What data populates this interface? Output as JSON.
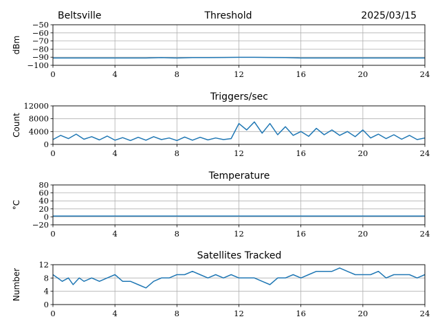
{
  "header": {
    "location": "Beltsville",
    "date": "2025/03/15"
  },
  "series_color": "#1f77b4",
  "chart_data": [
    {
      "type": "line",
      "title": "Threshold",
      "ylabel": "dBm",
      "xlim": [
        0,
        24
      ],
      "ylim": [
        -100,
        -50
      ],
      "xticks": [
        0,
        4,
        8,
        12,
        16,
        20,
        24
      ],
      "yticks": [
        -100,
        -90,
        -80,
        -70,
        -60,
        -50
      ],
      "grid": true,
      "x": [
        0,
        1,
        2,
        3,
        4,
        5,
        6,
        7,
        8,
        9,
        10,
        11,
        12,
        13,
        14,
        15,
        16,
        17,
        18,
        19,
        20,
        21,
        22,
        23,
        24
      ],
      "y": [
        -91,
        -91,
        -91,
        -91,
        -91,
        -91,
        -91,
        -90.5,
        -91,
        -90.5,
        -90.5,
        -90.3,
        -90.2,
        -90.2,
        -90.3,
        -90.5,
        -91,
        -91,
        -91,
        -91,
        -91,
        -91,
        -91,
        -91,
        -91
      ]
    },
    {
      "type": "line",
      "title": "Triggers/sec",
      "ylabel": "Count",
      "xlim": [
        0,
        24
      ],
      "ylim": [
        0,
        12000
      ],
      "xticks": [
        0,
        4,
        8,
        12,
        16,
        20,
        24
      ],
      "yticks": [
        0,
        4000,
        8000,
        12000
      ],
      "grid": true,
      "x": [
        0,
        0.5,
        1,
        1.5,
        2,
        2.5,
        3,
        3.5,
        4,
        4.5,
        5,
        5.5,
        6,
        6.5,
        7,
        7.5,
        8,
        8.5,
        9,
        9.5,
        10,
        10.5,
        11,
        11.5,
        12,
        12.5,
        13,
        13.5,
        14,
        14.5,
        15,
        15.5,
        16,
        16.5,
        17,
        17.5,
        18,
        18.5,
        19,
        19.5,
        20,
        20.5,
        21,
        21.5,
        22,
        22.5,
        23,
        23.5,
        24
      ],
      "y": [
        1500,
        2800,
        1800,
        3200,
        1600,
        2400,
        1400,
        2600,
        1300,
        2100,
        1200,
        2200,
        1300,
        2400,
        1500,
        2000,
        1200,
        2300,
        1300,
        2200,
        1400,
        2000,
        1500,
        1800,
        6500,
        4500,
        7000,
        3500,
        6500,
        3000,
        5500,
        2800,
        4000,
        2500,
        5000,
        3000,
        4500,
        2800,
        4000,
        2400,
        4500,
        2000,
        3200,
        1800,
        3000,
        1600,
        2800,
        1500,
        2000
      ]
    },
    {
      "type": "line",
      "title": "Temperature",
      "ylabel": "°C",
      "xlim": [
        0,
        24
      ],
      "ylim": [
        -20,
        80
      ],
      "xticks": [
        0,
        4,
        8,
        12,
        16,
        20,
        24
      ],
      "yticks": [
        -20,
        0,
        20,
        40,
        60,
        80
      ],
      "grid": true,
      "x": [
        0,
        24
      ],
      "y": [
        2,
        2
      ]
    },
    {
      "type": "line",
      "title": "Satellites Tracked",
      "ylabel": "Number",
      "xlim": [
        0,
        24
      ],
      "ylim": [
        0,
        12
      ],
      "xticks": [
        0,
        4,
        8,
        12,
        16,
        20,
        24
      ],
      "yticks": [
        0,
        4,
        8,
        12
      ],
      "grid": true,
      "x": [
        0,
        0.3,
        0.6,
        1,
        1.3,
        1.7,
        2,
        2.5,
        3,
        3.5,
        4,
        4.5,
        5,
        5.5,
        6,
        6.5,
        7,
        7.5,
        8,
        8.5,
        9,
        9.5,
        10,
        10.5,
        11,
        11.5,
        12,
        12.5,
        13,
        13.5,
        14,
        14.5,
        15,
        15.5,
        16,
        16.5,
        17,
        17.5,
        18,
        18.5,
        19,
        19.5,
        20,
        20.5,
        21,
        21.5,
        22,
        22.5,
        23,
        23.5,
        24
      ],
      "y": [
        9,
        8,
        7,
        8,
        6,
        8,
        7,
        8,
        7,
        8,
        9,
        7,
        7,
        6,
        5,
        7,
        8,
        8,
        9,
        9,
        10,
        9,
        8,
        9,
        8,
        9,
        8,
        8,
        8,
        7,
        6,
        8,
        8,
        9,
        8,
        9,
        10,
        10,
        10,
        11,
        10,
        9,
        9,
        9,
        10,
        8,
        9,
        9,
        9,
        8,
        9
      ]
    }
  ]
}
